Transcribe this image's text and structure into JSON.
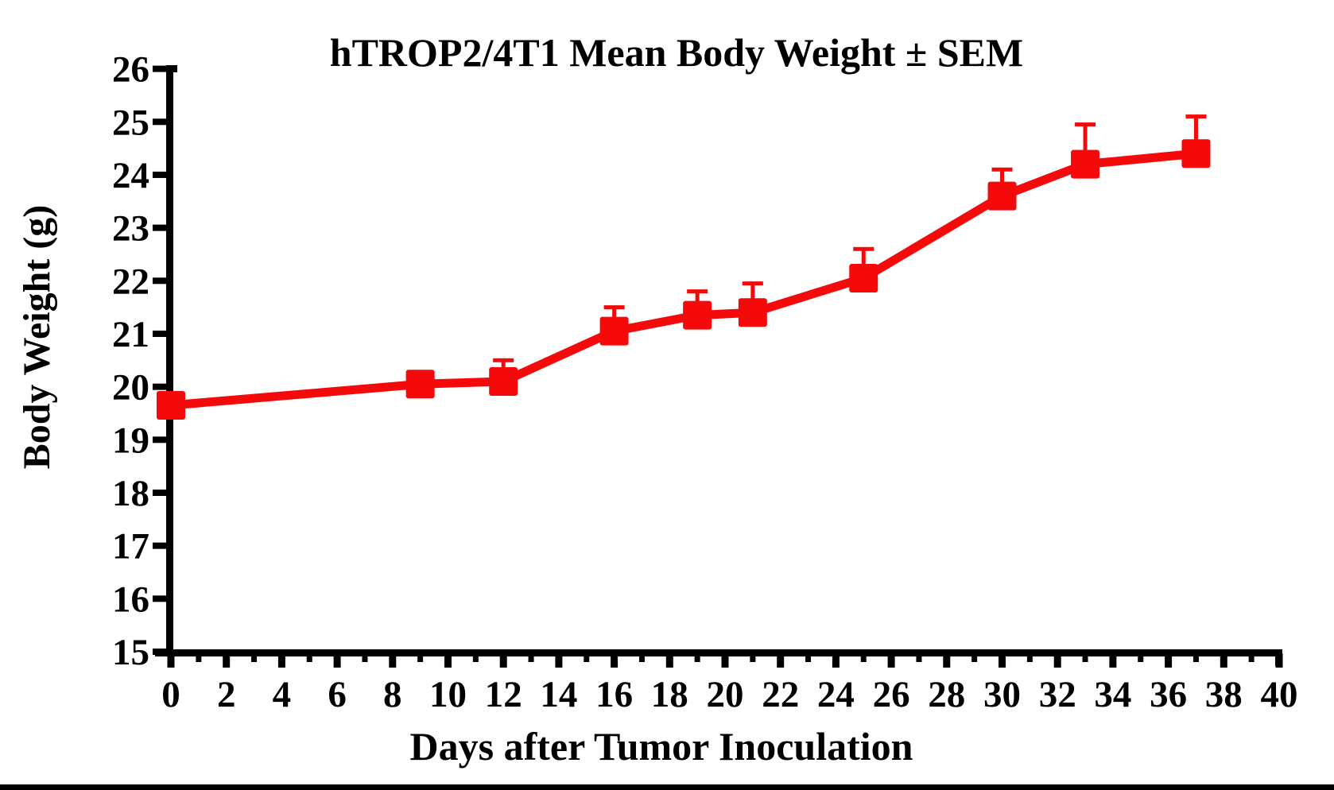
{
  "figure": {
    "background": "#ffffff",
    "bottom_bar_color": "#000000",
    "axis_color": "#000000"
  },
  "chart_data": {
    "type": "line",
    "title": "hTROP2/4T1 Mean Body Weight ± SEM",
    "xlabel": "Days after Tumor Inoculation",
    "ylabel": "Body Weight (g)",
    "x": [
      0,
      9,
      12,
      16,
      19,
      21,
      25,
      30,
      33,
      37
    ],
    "series": [
      {
        "name": "hTROP2/4T1 mean body weight",
        "values": [
          19.65,
          20.05,
          20.1,
          21.05,
          21.35,
          21.4,
          22.05,
          23.6,
          24.2,
          24.4
        ],
        "sem_upper": [
          0,
          0,
          0.4,
          0.45,
          0.45,
          0.55,
          0.55,
          0.5,
          0.75,
          0.7
        ],
        "color": "#f40a0a",
        "marker": "square",
        "error_bars": "upper-SEM-only"
      }
    ],
    "xlim": [
      0,
      40
    ],
    "ylim": [
      15,
      26
    ],
    "x_major_step": 2,
    "x_minor_step": 1,
    "y_step": 1,
    "x_tick_labels": [
      "0",
      "2",
      "4",
      "6",
      "8",
      "10",
      "12",
      "14",
      "16",
      "18",
      "20",
      "22",
      "24",
      "26",
      "28",
      "30",
      "32",
      "34",
      "36",
      "38",
      "40"
    ],
    "y_tick_labels": [
      "15",
      "16",
      "17",
      "18",
      "19",
      "20",
      "21",
      "22",
      "23",
      "24",
      "25",
      "26"
    ],
    "grid": false,
    "legend": false
  }
}
